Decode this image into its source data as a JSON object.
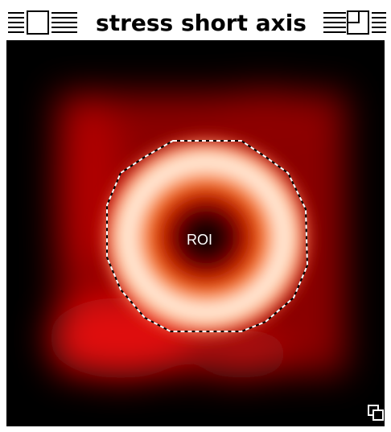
{
  "window": {
    "title": "stress short axis"
  },
  "image": {
    "roi_label": "ROI"
  }
}
